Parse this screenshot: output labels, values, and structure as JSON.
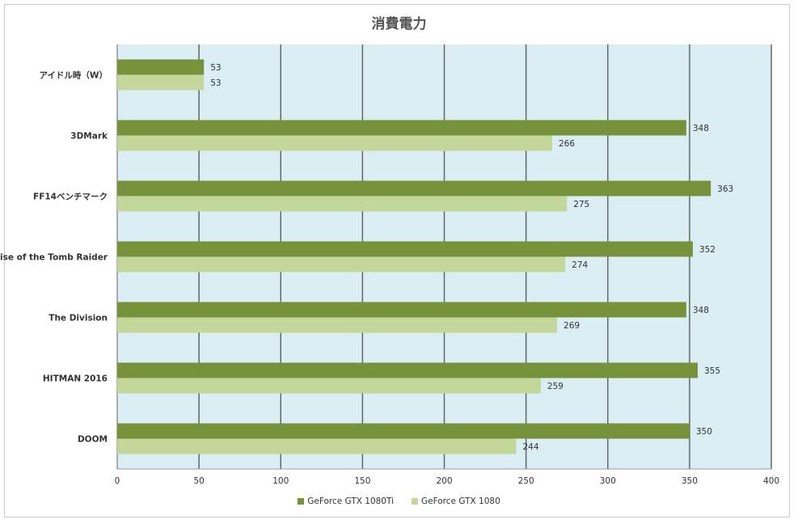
{
  "chart_data": {
    "type": "bar",
    "orientation": "horizontal",
    "title": "消費電力",
    "categories": [
      "アイドル時（W）",
      "3DMark",
      "FF14ベンチマーク",
      "Rise of the Tomb Raider",
      "The Division",
      "HITMAN 2016",
      "DOOM"
    ],
    "series": [
      {
        "name": "GeForce GTX 1080Ti",
        "color": "#76933c",
        "values": [
          53,
          348,
          363,
          352,
          348,
          355,
          350
        ]
      },
      {
        "name": "GeForce GTX 1080",
        "color": "#c4d79b",
        "values": [
          53,
          266,
          275,
          274,
          269,
          259,
          244
        ]
      }
    ],
    "xlim": [
      0,
      400
    ],
    "xticks": [
      "0",
      "50",
      "100",
      "150",
      "200",
      "250",
      "300",
      "350",
      "400"
    ],
    "grid": true,
    "plot_background": "#daeef3",
    "gridline_color": "#666666",
    "legend_position": "bottom"
  }
}
